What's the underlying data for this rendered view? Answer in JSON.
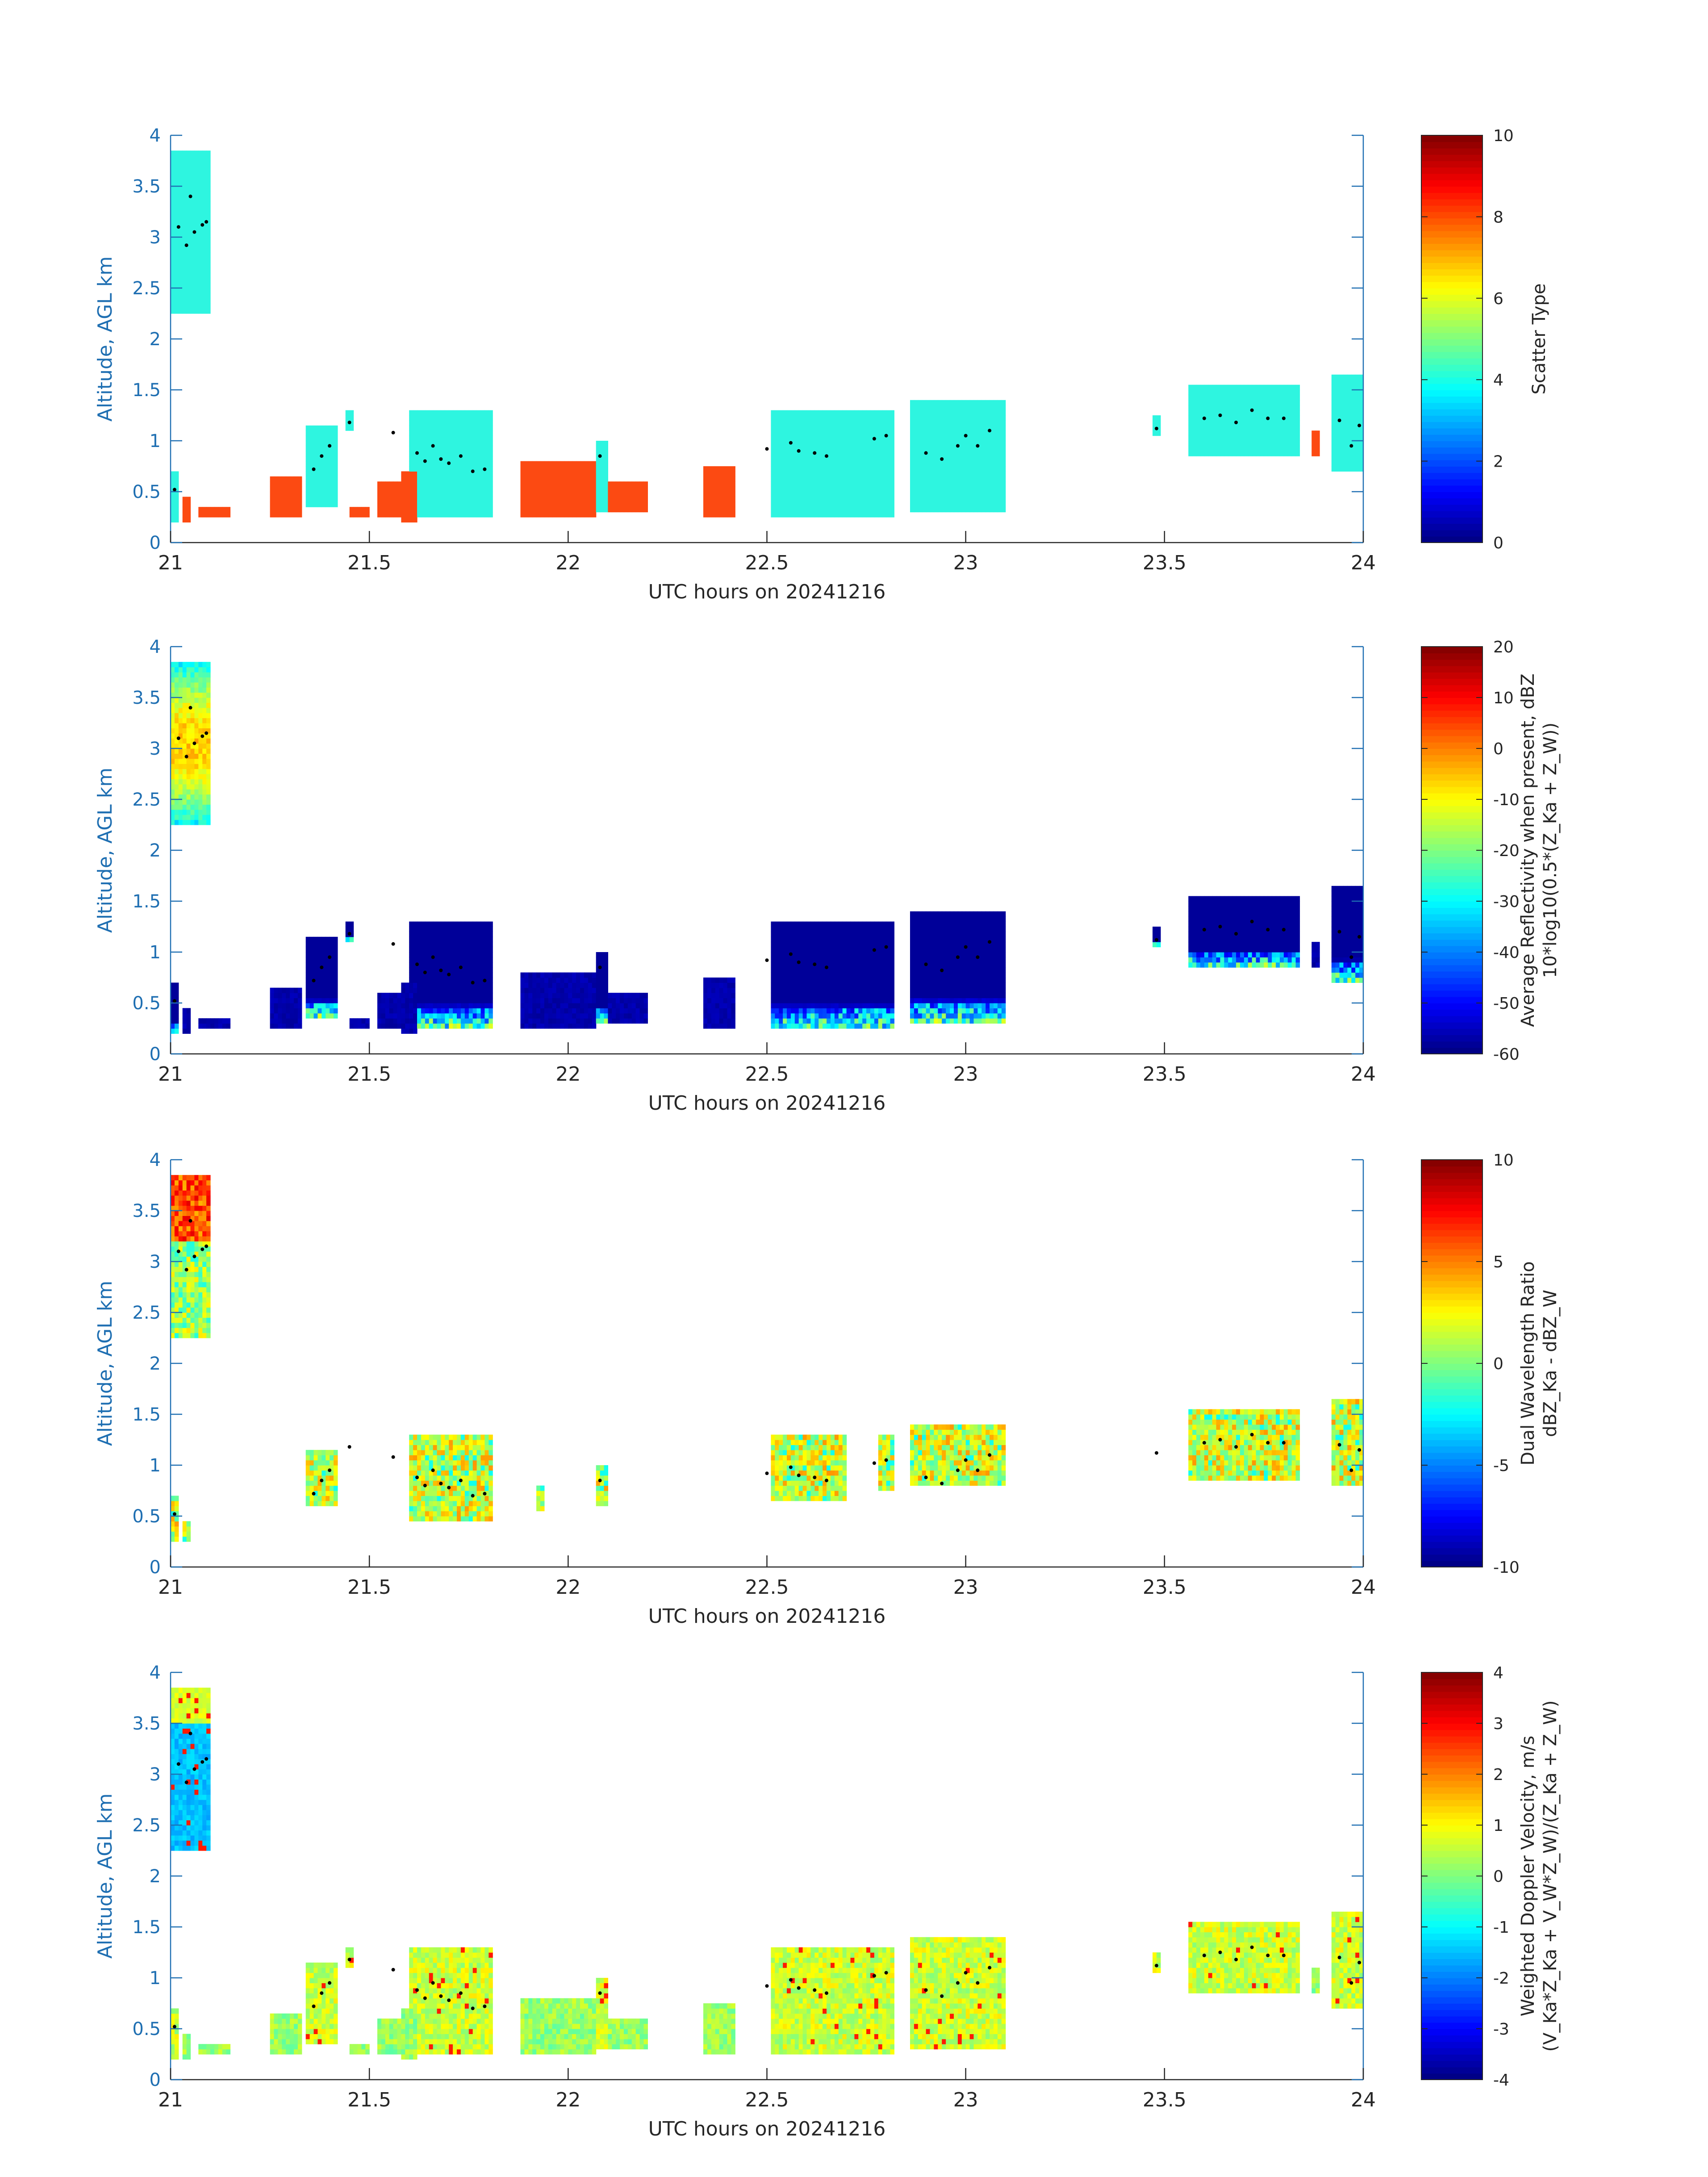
{
  "chart_data": [
    {
      "type": "heatmap",
      "xlabel": "UTC hours on 20241216",
      "ylabel": "Altitude, AGL km",
      "xlim": [
        21,
        24
      ],
      "ylim": [
        0,
        4
      ],
      "xticks": [
        "21",
        "21.5",
        "22",
        "22.5",
        "23",
        "23.5",
        "24"
      ],
      "yticks": [
        "0",
        "0.5",
        "1",
        "1.5",
        "2",
        "2.5",
        "3",
        "3.5",
        "4"
      ],
      "colorbar": {
        "label_lines": [
          "Scatter Type"
        ],
        "range": [
          0,
          10
        ],
        "ticks": [
          "0",
          "2",
          "4",
          "6",
          "8",
          "10"
        ]
      },
      "colormap": "jet",
      "field": "scatter",
      "grid": false
    },
    {
      "type": "heatmap",
      "xlabel": "UTC hours on 20241216",
      "ylabel": "Altitude, AGL km",
      "xlim": [
        21,
        24
      ],
      "ylim": [
        0,
        4
      ],
      "xticks": [
        "21",
        "21.5",
        "22",
        "22.5",
        "23",
        "23.5",
        "24"
      ],
      "yticks": [
        "0",
        "0.5",
        "1",
        "1.5",
        "2",
        "2.5",
        "3",
        "3.5",
        "4"
      ],
      "colorbar": {
        "label_lines": [
          "Average Reflectivity when present, dBZ",
          "10*log10(0.5*(Z_Ka + Z_W))"
        ],
        "range": [
          -60,
          20
        ],
        "ticks": [
          "-60",
          "-50",
          "-40",
          "-30",
          "-20",
          "-10",
          "0",
          "10",
          "20"
        ]
      },
      "colormap": "jet",
      "field": "reflectivity",
      "grid": false
    },
    {
      "type": "heatmap",
      "xlabel": "UTC hours on 20241216",
      "ylabel": "Altitude, AGL km",
      "xlim": [
        21,
        24
      ],
      "ylim": [
        0,
        4
      ],
      "xticks": [
        "21",
        "21.5",
        "22",
        "22.5",
        "23",
        "23.5",
        "24"
      ],
      "yticks": [
        "0",
        "0.5",
        "1",
        "1.5",
        "2",
        "2.5",
        "3",
        "3.5",
        "4"
      ],
      "colorbar": {
        "label_lines": [
          "Dual Wavelength Ratio",
          "dBZ_Ka - dBZ_W"
        ],
        "range": [
          -10,
          10
        ],
        "ticks": [
          "-10",
          "-5",
          "0",
          "5",
          "10"
        ]
      },
      "colormap": "jet",
      "field": "dwr",
      "grid": false
    },
    {
      "type": "heatmap",
      "xlabel": "UTC hours on 20241216",
      "ylabel": "Altitude, AGL km",
      "xlim": [
        21,
        24
      ],
      "ylim": [
        0,
        4
      ],
      "xticks": [
        "21",
        "21.5",
        "22",
        "22.5",
        "23",
        "23.5",
        "24"
      ],
      "yticks": [
        "0",
        "0.5",
        "1",
        "1.5",
        "2",
        "2.5",
        "3",
        "3.5",
        "4"
      ],
      "colorbar": {
        "label_lines": [
          "Weighted Doppler Velocity, m/s",
          "(V_Ka*Z_Ka + V_W*Z_W)/(Z_Ka + Z_W)"
        ],
        "range": [
          -4,
          4
        ],
        "ticks": [
          "-4",
          "-3",
          "-2",
          "-1",
          "0",
          "1",
          "2",
          "3",
          "4"
        ]
      },
      "colormap": "jet",
      "field": "velocity",
      "grid": false
    }
  ],
  "cloud_regions": [
    {
      "t0": 21.0,
      "t1": 21.1,
      "z0": 2.25,
      "z1": 3.85,
      "scatter": "cloud"
    },
    {
      "t0": 21.0,
      "t1": 21.02,
      "z0": 0.2,
      "z1": 0.7,
      "scatter": "cloud"
    },
    {
      "t0": 21.03,
      "t1": 21.05,
      "z0": 0.2,
      "z1": 0.45,
      "scatter": "precip"
    },
    {
      "t0": 21.07,
      "t1": 21.15,
      "z0": 0.25,
      "z1": 0.35,
      "scatter": "precip"
    },
    {
      "t0": 21.25,
      "t1": 21.33,
      "z0": 0.25,
      "z1": 0.65,
      "scatter": "precip"
    },
    {
      "t0": 21.34,
      "t1": 21.42,
      "z0": 0.35,
      "z1": 1.15,
      "scatter": "cloud"
    },
    {
      "t0": 21.44,
      "t1": 21.46,
      "z0": 1.1,
      "z1": 1.3,
      "scatter": "cloud"
    },
    {
      "t0": 21.45,
      "t1": 21.5,
      "z0": 0.25,
      "z1": 0.35,
      "scatter": "precip"
    },
    {
      "t0": 21.52,
      "t1": 21.58,
      "z0": 0.25,
      "z1": 0.6,
      "scatter": "precip"
    },
    {
      "t0": 21.58,
      "t1": 21.62,
      "z0": 0.2,
      "z1": 0.7,
      "scatter": "precip"
    },
    {
      "t0": 21.6,
      "t1": 21.81,
      "z0": 0.25,
      "z1": 1.3,
      "scatter": "cloud"
    },
    {
      "t0": 21.88,
      "t1": 22.07,
      "z0": 0.25,
      "z1": 0.8,
      "scatter": "precip"
    },
    {
      "t0": 22.07,
      "t1": 22.1,
      "z0": 0.3,
      "z1": 1.0,
      "scatter": "cloud"
    },
    {
      "t0": 22.1,
      "t1": 22.2,
      "z0": 0.3,
      "z1": 0.6,
      "scatter": "precip"
    },
    {
      "t0": 22.34,
      "t1": 22.42,
      "z0": 0.25,
      "z1": 0.75,
      "scatter": "precip"
    },
    {
      "t0": 22.51,
      "t1": 22.82,
      "z0": 0.25,
      "z1": 1.3,
      "scatter": "cloud"
    },
    {
      "t0": 22.86,
      "t1": 23.1,
      "z0": 0.3,
      "z1": 1.4,
      "scatter": "cloud"
    },
    {
      "t0": 23.47,
      "t1": 23.49,
      "z0": 1.05,
      "z1": 1.25,
      "scatter": "cloud"
    },
    {
      "t0": 23.56,
      "t1": 23.84,
      "z0": 0.85,
      "z1": 1.55,
      "scatter": "cloud"
    },
    {
      "t0": 23.56,
      "t1": 23.58,
      "z0": 0.85,
      "z1": 1.1,
      "scatter": "precip"
    },
    {
      "t0": 23.87,
      "t1": 23.89,
      "z0": 0.85,
      "z1": 1.1,
      "scatter": "precip"
    },
    {
      "t0": 23.92,
      "t1": 24.0,
      "z0": 0.7,
      "z1": 1.65,
      "scatter": "cloud"
    }
  ],
  "dwr_mask_regions": [
    [
      21.0,
      21.1,
      2.25,
      3.85
    ],
    [
      21.0,
      21.05,
      0.25,
      0.7
    ],
    [
      21.34,
      21.42,
      0.6,
      1.25
    ],
    [
      21.6,
      21.81,
      0.45,
      1.35
    ],
    [
      21.92,
      21.94,
      0.55,
      0.8
    ],
    [
      22.02,
      22.02,
      0.25,
      0.3
    ],
    [
      22.07,
      22.1,
      0.6,
      1.05
    ],
    [
      22.51,
      22.7,
      0.65,
      1.3
    ],
    [
      22.78,
      22.82,
      0.75,
      1.35
    ],
    [
      22.86,
      23.1,
      0.8,
      1.4
    ],
    [
      23.56,
      23.84,
      0.85,
      1.55
    ],
    [
      23.92,
      24.0,
      0.8,
      1.75
    ]
  ],
  "dot_track": [
    [
      21.01,
      0.52
    ],
    [
      21.02,
      3.1
    ],
    [
      21.04,
      2.92
    ],
    [
      21.05,
      3.4
    ],
    [
      21.06,
      3.05
    ],
    [
      21.08,
      3.12
    ],
    [
      21.09,
      3.15
    ],
    [
      21.36,
      0.72
    ],
    [
      21.38,
      0.85
    ],
    [
      21.4,
      0.95
    ],
    [
      21.45,
      1.18
    ],
    [
      21.56,
      1.08
    ],
    [
      21.62,
      0.88
    ],
    [
      21.64,
      0.8
    ],
    [
      21.66,
      0.95
    ],
    [
      21.68,
      0.82
    ],
    [
      21.7,
      0.78
    ],
    [
      21.73,
      0.85
    ],
    [
      21.76,
      0.7
    ],
    [
      21.79,
      0.72
    ],
    [
      22.08,
      0.85
    ],
    [
      22.5,
      0.92
    ],
    [
      22.56,
      0.98
    ],
    [
      22.58,
      0.9
    ],
    [
      22.62,
      0.88
    ],
    [
      22.65,
      0.85
    ],
    [
      22.77,
      1.02
    ],
    [
      22.8,
      1.05
    ],
    [
      22.9,
      0.88
    ],
    [
      22.94,
      0.82
    ],
    [
      22.98,
      0.95
    ],
    [
      23.0,
      1.05
    ],
    [
      23.03,
      0.95
    ],
    [
      23.06,
      1.1
    ],
    [
      23.48,
      1.12
    ],
    [
      23.6,
      1.22
    ],
    [
      23.64,
      1.25
    ],
    [
      23.68,
      1.18
    ],
    [
      23.72,
      1.3
    ],
    [
      23.76,
      1.22
    ],
    [
      23.8,
      1.22
    ],
    [
      23.94,
      1.2
    ],
    [
      23.97,
      0.95
    ],
    [
      23.99,
      1.15
    ]
  ]
}
